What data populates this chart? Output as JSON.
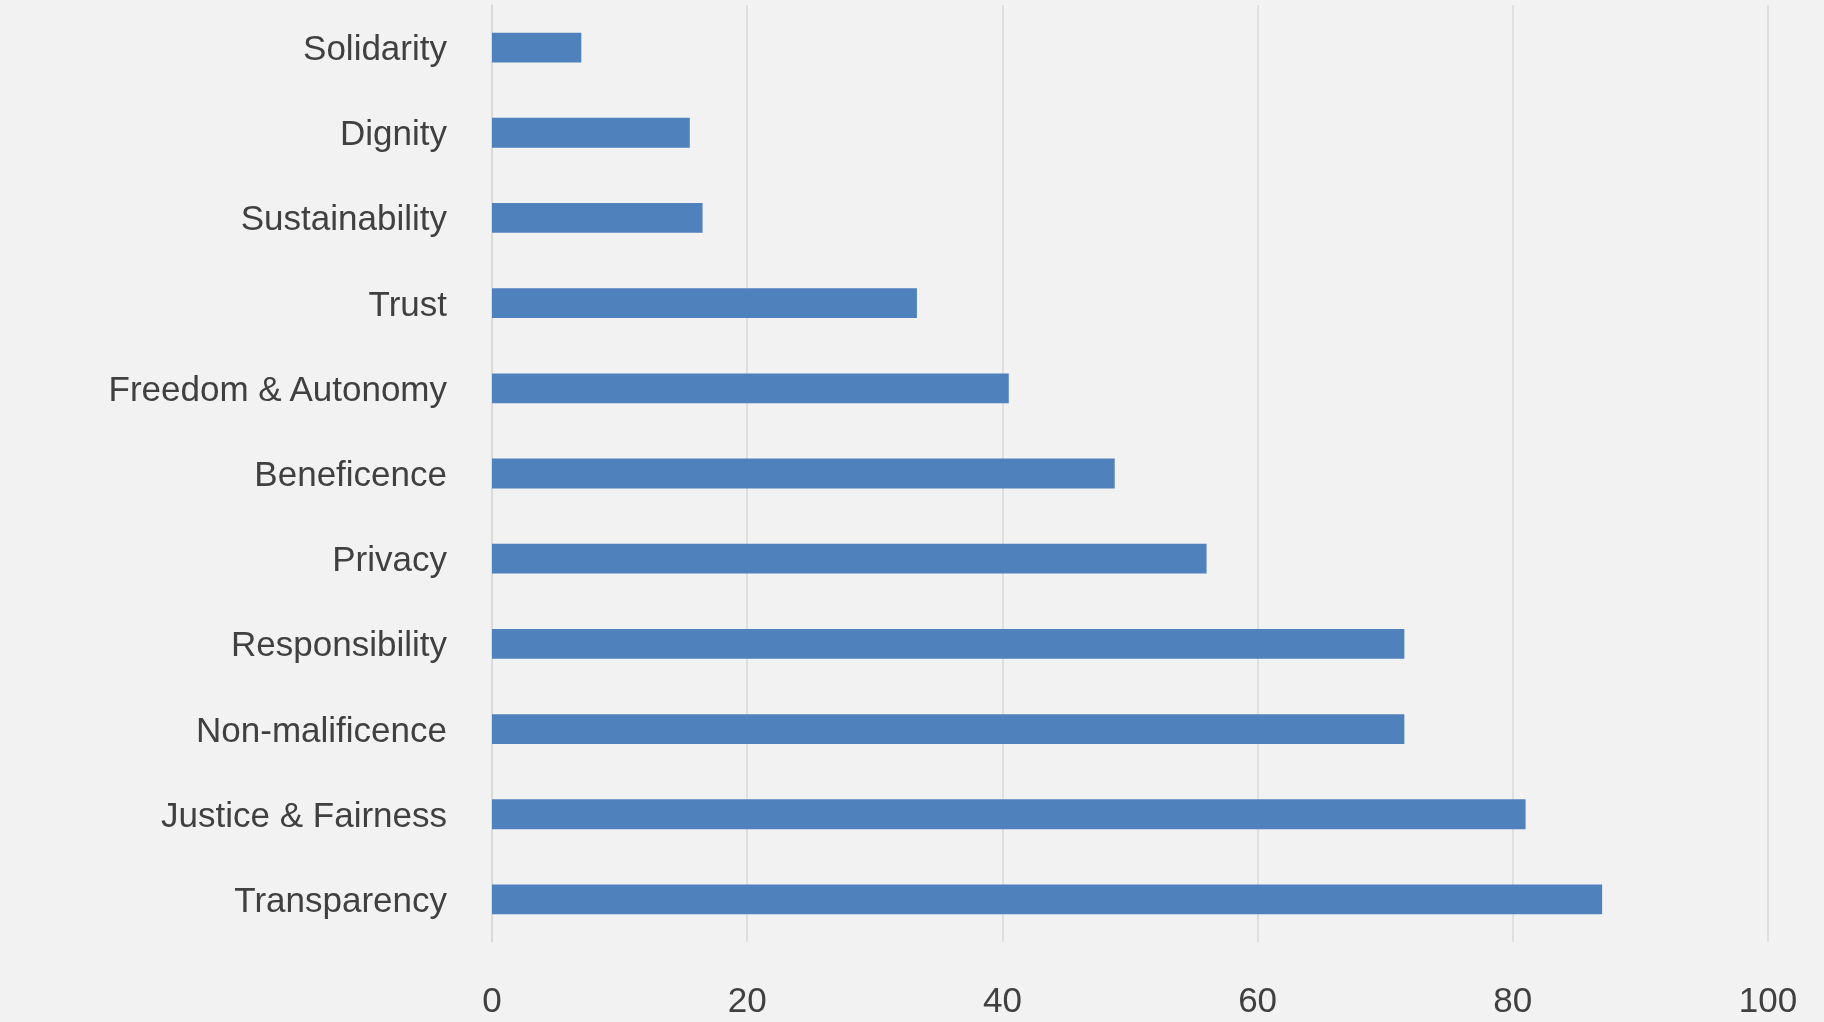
{
  "chart_data": {
    "type": "bar",
    "orientation": "horizontal",
    "categories": [
      "Solidarity",
      "Dignity",
      "Sustainability",
      "Trust",
      "Freedom & Autonomy",
      "Beneficence",
      "Privacy",
      "Responsibility",
      "Non-malificence",
      "Justice & Fairness",
      "Transparency"
    ],
    "values": [
      7,
      15.5,
      16.5,
      33.3,
      40.5,
      48.8,
      56,
      71.5,
      71.5,
      81,
      87
    ],
    "color": "#4f81bd",
    "xlim": [
      0,
      100
    ],
    "xticks": [
      0,
      20,
      40,
      60,
      80,
      100
    ],
    "grid": "x"
  }
}
